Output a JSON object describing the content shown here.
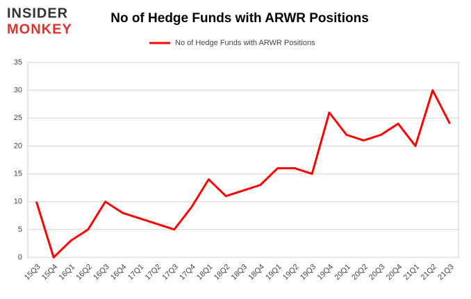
{
  "logo": {
    "line1": "INSIDER",
    "line2": "MONKEY"
  },
  "chart_data": {
    "type": "line",
    "title": "No of Hedge Funds with ARWR Positions",
    "categories": [
      "15Q3",
      "15Q4",
      "16Q1",
      "16Q2",
      "16Q3",
      "16Q4",
      "17Q1",
      "17Q2",
      "17Q3",
      "17Q4",
      "18Q1",
      "18Q2",
      "18Q3",
      "18Q4",
      "19Q1",
      "19Q2",
      "19Q3",
      "19Q4",
      "20Q1",
      "20Q2",
      "20Q3",
      "20Q4",
      "21Q1",
      "21Q2",
      "21Q3"
    ],
    "series": [
      {
        "name": "No of Hedge Funds with ARWR Positions",
        "color": "#ff0000",
        "values": [
          10,
          0,
          3,
          5,
          10,
          8,
          7,
          6,
          5,
          9,
          14,
          11,
          12,
          13,
          16,
          16,
          15,
          26,
          22,
          21,
          22,
          24,
          20,
          30,
          24
        ]
      }
    ],
    "ylim": [
      0,
      35
    ],
    "yticks": [
      0,
      5,
      10,
      15,
      20,
      25,
      30,
      35
    ],
    "grid": true,
    "legend": "top"
  }
}
